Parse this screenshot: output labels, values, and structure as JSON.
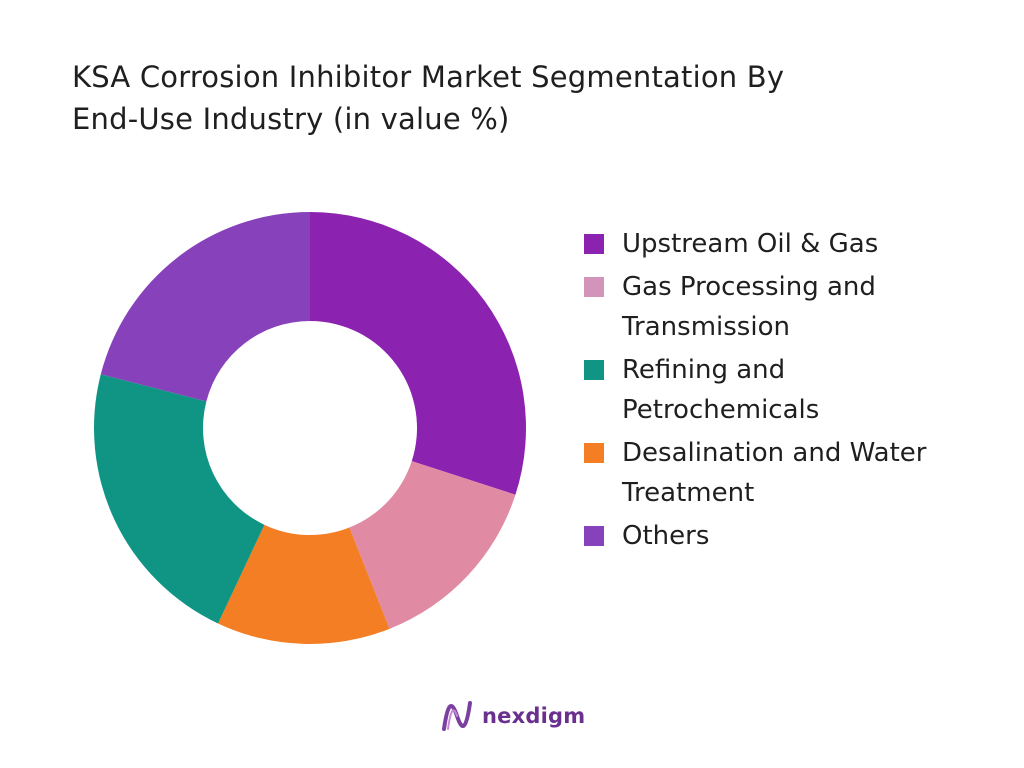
{
  "chart_data": {
    "type": "pie",
    "title_lines": [
      "KSA Corrosion Inhibitor Market Segmentation By",
      "End-Use Industry (in value %)"
    ],
    "categories": [
      "Upstream Oil & Gas",
      "Gas Processing and Transmission",
      "Refining and Petrochemicals",
      "Desalination and Water Treatment",
      "Others"
    ],
    "legend_lines": [
      [
        "Upstream Oil & Gas"
      ],
      [
        "Gas Processing and",
        "Transmission"
      ],
      [
        "Refining and",
        "Petrochemicals"
      ],
      [
        "Desalination and Water",
        "Treatment"
      ],
      [
        "Others"
      ]
    ],
    "values": [
      30,
      14,
      22,
      13,
      21
    ],
    "colors": [
      "#8b23b0",
      "#e08aa3",
      "#f47e23",
      "#109585",
      "#8641bb"
    ],
    "legend_colors": [
      "#8b23b0",
      "#d295b9",
      "#109585",
      "#f47e23",
      "#8641bb"
    ],
    "donut": true,
    "legend_position": "right"
  },
  "brand": {
    "logo_text": "nexdigm",
    "logo_color": "#6a2f8f"
  }
}
